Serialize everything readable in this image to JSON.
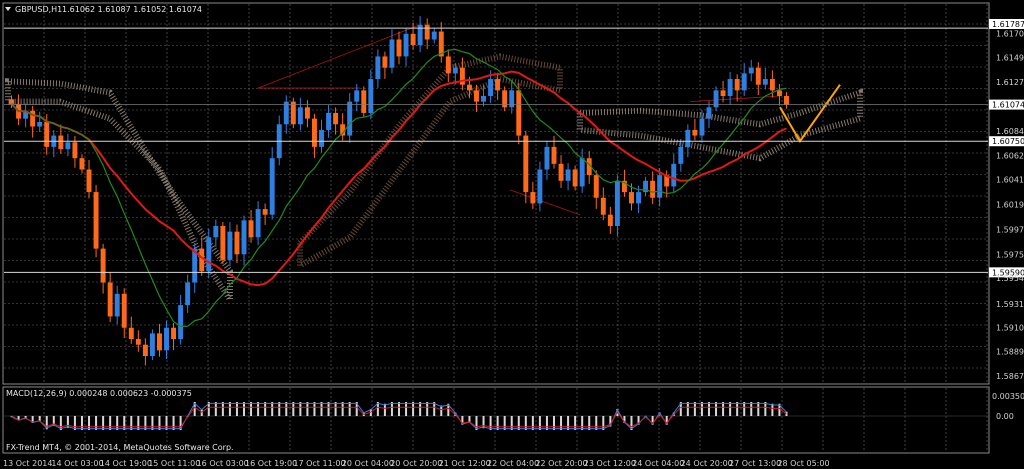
{
  "header": {
    "symbol": "GBPUSD,H1",
    "ohlc": "1.61062 1.61087 1.61052 1.61074"
  },
  "macd": {
    "title": "MACD(12,26,9) 0.000248 0.000623 -0.000375",
    "ticks": [
      "0.003501",
      "0.00"
    ]
  },
  "copyright": "FX-Trend MT4, © 2001-2014, MetaQuotes Software Corp.",
  "price_ticks": [
    "1.61787",
    "1.61705",
    "1.61490",
    "1.61275",
    "1.61074",
    "1.60840",
    "1.60750",
    "1.60625",
    "1.60410",
    "1.60190",
    "1.59970",
    "1.59750",
    "1.59590",
    "1.59540",
    "1.59310",
    "1.59100",
    "1.58890",
    "1.58675"
  ],
  "time_ticks": [
    "13 Oct 2014",
    "14 Oct 03:00",
    "14 Oct 19:00",
    "15 Oct 11:00",
    "16 Oct 03:00",
    "16 Oct 19:00",
    "17 Oct 11:00",
    "20 Oct 04:00",
    "20 Oct 20:00",
    "21 Oct 12:00",
    "22 Oct 04:00",
    "22 Oct 20:00",
    "23 Oct 12:00",
    "24 Oct 04:00",
    "24 Oct 20:00",
    "27 Oct 13:00",
    "28 Oct 05:00"
  ],
  "colors": {
    "bull": "#2f7fe0",
    "bear": "#ff6a1a",
    "ma_slow": "#e01818",
    "ma_fast": "#1e8c1e",
    "cloud_light": "#cdb8a8",
    "cloud_dark": "#a07050",
    "zigzag": "#ffa500",
    "grid": "#6a6a6a"
  },
  "chart_data": {
    "type": "candlestick",
    "symbol": "GBPUSD,H1",
    "ylim": [
      1.5862,
      1.6184
    ],
    "horizontal_levels": [
      1.6175,
      1.6075,
      1.5959
    ],
    "current_price": 1.61074,
    "closes": [
      1.6108,
      1.6095,
      1.6102,
      1.6088,
      1.6092,
      1.607,
      1.608,
      1.6068,
      1.6074,
      1.606,
      1.605,
      1.603,
      1.598,
      1.595,
      1.592,
      1.594,
      1.591,
      1.59,
      1.5895,
      1.5885,
      1.5905,
      1.589,
      1.591,
      1.59,
      1.593,
      1.595,
      1.598,
      1.596,
      1.599,
      1.6,
      1.597,
      1.5995,
      1.5975,
      1.6005,
      1.599,
      1.6015,
      1.601,
      1.606,
      1.609,
      1.611,
      1.609,
      1.6105,
      1.6095,
      1.607,
      1.6085,
      1.61,
      1.609,
      1.608,
      1.611,
      1.612,
      1.61,
      1.613,
      1.615,
      1.614,
      1.6165,
      1.615,
      1.617,
      1.616,
      1.6178,
      1.6165,
      1.6172,
      1.615,
      1.6135,
      1.614,
      1.6125,
      1.612,
      1.611,
      1.6115,
      1.613,
      1.612,
      1.6105,
      1.612,
      1.608,
      1.603,
      1.602,
      1.605,
      1.607,
      1.6055,
      1.604,
      1.605,
      1.6035,
      1.606,
      1.6045,
      1.6025,
      1.601,
      1.6,
      1.604,
      1.603,
      1.602,
      1.603,
      1.604,
      1.6025,
      1.6045,
      1.6035,
      1.6055,
      1.607,
      1.6085,
      1.608,
      1.6095,
      1.6105,
      1.612,
      1.6115,
      1.613,
      1.612,
      1.6135,
      1.614,
      1.6125,
      1.613,
      1.612,
      1.6115,
      1.61074
    ],
    "macd_signal_level": 0.0
  }
}
